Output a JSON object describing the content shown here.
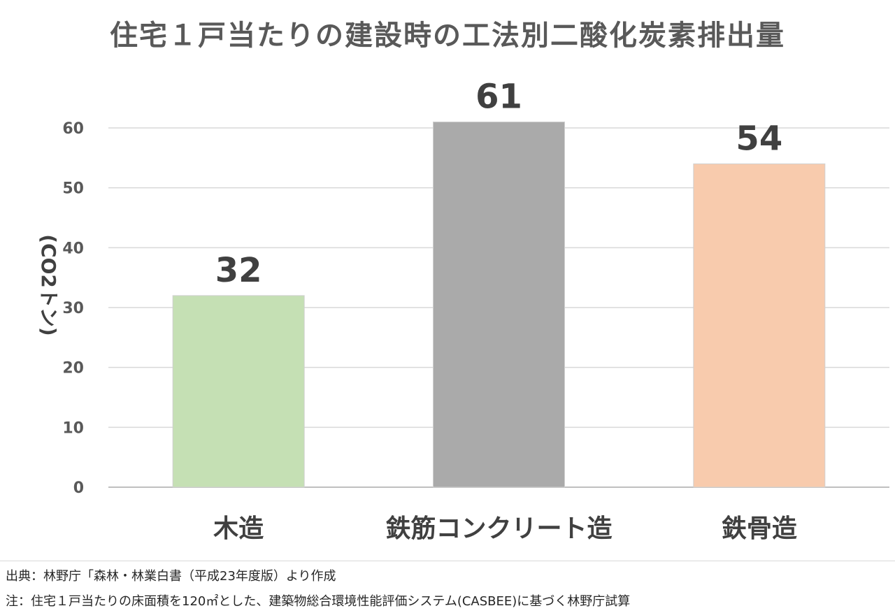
{
  "chart_data": {
    "type": "bar",
    "title": "住宅１戸当たりの建設時の工法別二酸化炭素排出量",
    "ylabel": "(CO2トン)",
    "xlabel": "",
    "categories": [
      "木造",
      "鉄筋コンクリート造",
      "鉄骨造"
    ],
    "values": [
      32,
      61,
      54
    ],
    "data_labels": [
      "32",
      "61",
      "54"
    ],
    "bar_colors": [
      "#c5e0b4",
      "#aaaaaa",
      "#f8cbad"
    ],
    "ylim": [
      0,
      60
    ],
    "yticks": [
      0,
      10,
      20,
      30,
      40,
      50,
      60
    ],
    "grid": true,
    "legend": "none"
  },
  "notes": {
    "source": "出典：林野庁「森林・林業白書（平成23年度版）より作成",
    "footnote": "注：住宅１戸当たりの床面積を120㎡とした、建築物総合環境性能評価システム(CASBEE)に基づく林野庁試算"
  }
}
